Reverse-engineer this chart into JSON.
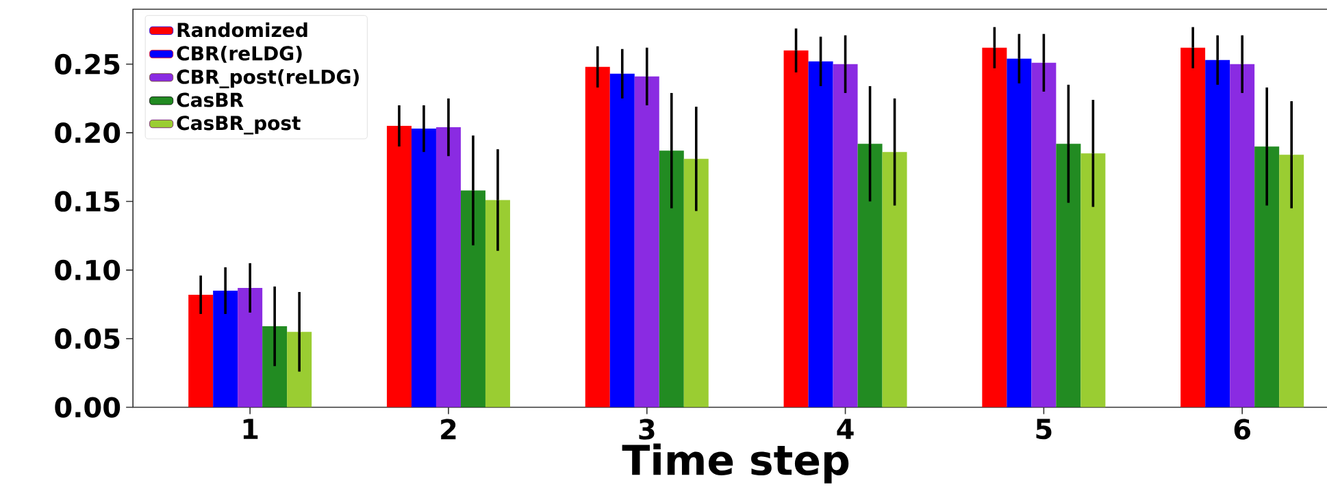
{
  "chart_data": {
    "type": "bar",
    "xlabel": "Time step",
    "categories": [
      "1",
      "2",
      "3",
      "4",
      "5",
      "6"
    ],
    "ylim": [
      0,
      0.29
    ],
    "yticks": [
      {
        "value": 0,
        "label": "0.00"
      },
      {
        "value": 0.05,
        "label": "0.05"
      },
      {
        "value": 0.1,
        "label": "0.10"
      },
      {
        "value": 0.15,
        "label": "0.15"
      },
      {
        "value": 0.2,
        "label": "0.20"
      },
      {
        "value": 0.25,
        "label": "0.25"
      }
    ],
    "legend": "top left",
    "grid": false,
    "series": [
      {
        "name": "Randomized",
        "color": "#ff0000",
        "values": [
          0.082,
          0.205,
          0.248,
          0.26,
          0.262,
          0.262
        ],
        "errors": [
          0.014,
          0.015,
          0.015,
          0.016,
          0.015,
          0.015
        ]
      },
      {
        "name": "CBR(reLDG)",
        "color": "#0000ff",
        "values": [
          0.085,
          0.203,
          0.243,
          0.252,
          0.254,
          0.253
        ],
        "errors": [
          0.017,
          0.017,
          0.018,
          0.018,
          0.018,
          0.018
        ]
      },
      {
        "name": "CBR_post(reLDG)",
        "color": "#8a2be2",
        "values": [
          0.087,
          0.204,
          0.241,
          0.25,
          0.251,
          0.25
        ],
        "errors": [
          0.018,
          0.021,
          0.021,
          0.021,
          0.021,
          0.021
        ]
      },
      {
        "name": "CasBR",
        "color": "#228b22",
        "values": [
          0.059,
          0.158,
          0.187,
          0.192,
          0.192,
          0.19
        ],
        "errors": [
          0.029,
          0.04,
          0.042,
          0.042,
          0.043,
          0.043
        ]
      },
      {
        "name": "CasBR_post",
        "color": "#9acd32",
        "values": [
          0.055,
          0.151,
          0.181,
          0.186,
          0.185,
          0.184
        ],
        "errors": [
          0.029,
          0.037,
          0.038,
          0.039,
          0.039,
          0.039
        ]
      }
    ]
  }
}
